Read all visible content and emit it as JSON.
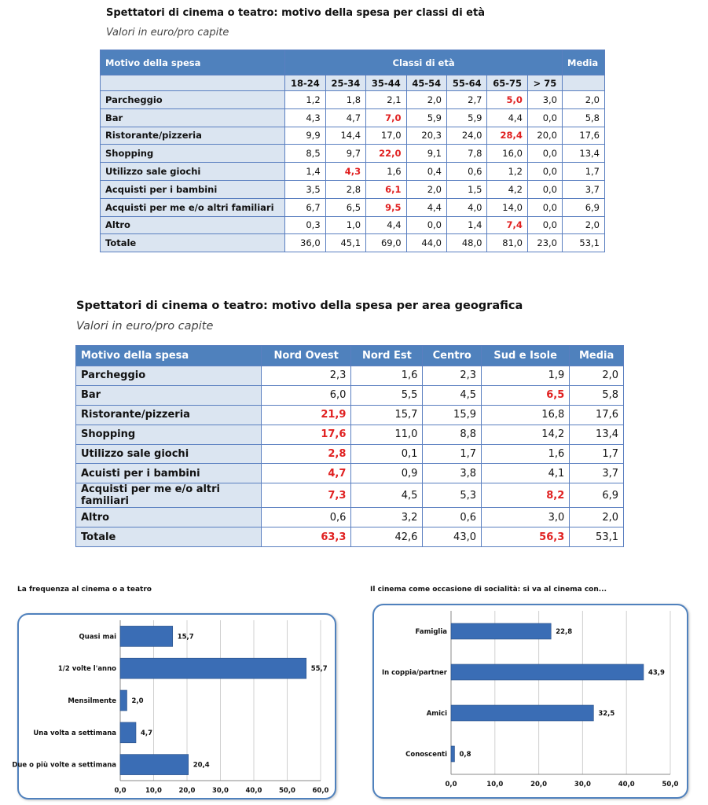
{
  "table1": {
    "title": "Spettatori di cinema o teatro: motivo della spesa per classi di età",
    "subtitle": "Valori in euro/pro capite",
    "header_label": "Motivo della spesa",
    "group_label": "Classi di età",
    "media_label": "Media",
    "age_classes": [
      "18-24",
      "25-34",
      "35-44",
      "45-54",
      "55-64",
      "65-75",
      "> 75"
    ],
    "rows": [
      {
        "label": "Parcheggio",
        "values": [
          "1,2",
          "1,8",
          "2,1",
          "2,0",
          "2,7",
          "5,0",
          "3,0",
          "2,0"
        ],
        "red": [
          5
        ]
      },
      {
        "label": "Bar",
        "values": [
          "4,3",
          "4,7",
          "7,0",
          "5,9",
          "5,9",
          "4,4",
          "0,0",
          "5,8"
        ],
        "red": [
          2
        ]
      },
      {
        "label": "Ristorante/pizzeria",
        "values": [
          "9,9",
          "14,4",
          "17,0",
          "20,3",
          "24,0",
          "28,4",
          "20,0",
          "17,6"
        ],
        "red": [
          5
        ]
      },
      {
        "label": "Shopping",
        "values": [
          "8,5",
          "9,7",
          "22,0",
          "9,1",
          "7,8",
          "16,0",
          "0,0",
          "13,4"
        ],
        "red": [
          2
        ]
      },
      {
        "label": "Utilizzo sale giochi",
        "values": [
          "1,4",
          "4,3",
          "1,6",
          "0,4",
          "0,6",
          "1,2",
          "0,0",
          "1,7"
        ],
        "red": [
          1
        ]
      },
      {
        "label": "Acquisti per i bambini",
        "values": [
          "3,5",
          "2,8",
          "6,1",
          "2,0",
          "1,5",
          "4,2",
          "0,0",
          "3,7"
        ],
        "red": [
          2
        ]
      },
      {
        "label": "Acquisti per me e/o altri familiari",
        "values": [
          "6,7",
          "6,5",
          "9,5",
          "4,4",
          "4,0",
          "14,0",
          "0,0",
          "6,9"
        ],
        "red": [
          2
        ]
      },
      {
        "label": "Altro",
        "values": [
          "0,3",
          "1,0",
          "4,4",
          "0,0",
          "1,4",
          "7,4",
          "0,0",
          "2,0"
        ],
        "red": [
          5
        ]
      },
      {
        "label": "Totale",
        "values": [
          "36,0",
          "45,1",
          "69,0",
          "44,0",
          "48,0",
          "81,0",
          "23,0",
          "53,1"
        ],
        "red": []
      }
    ]
  },
  "table2": {
    "title": "Spettatori di cinema o teatro: motivo della spesa per area geografica",
    "subtitle": "Valori in euro/pro capite",
    "columns": [
      "Motivo della spesa",
      "Nord Ovest",
      "Nord Est",
      "Centro",
      "Sud e Isole",
      "Media"
    ],
    "rows": [
      {
        "label": "Parcheggio",
        "values": [
          "2,3",
          "1,6",
          "2,3",
          "1,9",
          "2,0"
        ],
        "red": []
      },
      {
        "label": "Bar",
        "values": [
          "6,0",
          "5,5",
          "4,5",
          "6,5",
          "5,8"
        ],
        "red": [
          3
        ]
      },
      {
        "label": "Ristorante/pizzeria",
        "values": [
          "21,9",
          "15,7",
          "15,9",
          "16,8",
          "17,6"
        ],
        "red": [
          0
        ]
      },
      {
        "label": "Shopping",
        "values": [
          "17,6",
          "11,0",
          "8,8",
          "14,2",
          "13,4"
        ],
        "red": [
          0
        ]
      },
      {
        "label": "Utilizzo sale giochi",
        "values": [
          "2,8",
          "0,1",
          "1,7",
          "1,6",
          "1,7"
        ],
        "red": [
          0
        ]
      },
      {
        "label": "Acuisti per i bambini",
        "values": [
          "4,7",
          "0,9",
          "3,8",
          "4,1",
          "3,7"
        ],
        "red": [
          0
        ]
      },
      {
        "label": "Acquisti per me e/o altri familiari",
        "values": [
          "7,3",
          "4,5",
          "5,3",
          "8,2",
          "6,9"
        ],
        "red": [
          0,
          3
        ]
      },
      {
        "label": "Altro",
        "values": [
          "0,6",
          "3,2",
          "0,6",
          "3,0",
          "2,0"
        ],
        "red": []
      },
      {
        "label": "Totale",
        "values": [
          "63,3",
          "42,6",
          "43,0",
          "56,3",
          "53,1"
        ],
        "red": [
          0,
          3
        ]
      }
    ]
  },
  "colors": {
    "bar": "#3a6db5",
    "accent": "#4f81bd",
    "red": "#e02020"
  },
  "chart_data": [
    {
      "type": "bar",
      "orientation": "horizontal",
      "title": "La frequenza al cinema o a teatro",
      "categories": [
        "Quasi mai",
        "1/2 volte l'anno",
        "Mensilmente",
        "Una volta a settimana",
        "Due o più volte a settimana"
      ],
      "values": [
        15.7,
        55.7,
        2.0,
        4.7,
        20.4
      ],
      "value_labels": [
        "15,7",
        "55,7",
        "2,0",
        "4,7",
        "20,4"
      ],
      "xlim": [
        0,
        60
      ],
      "ticks": [
        "0,0",
        "10,0",
        "20,0",
        "30,0",
        "40,0",
        "50,0",
        "60,0"
      ],
      "grid": true
    },
    {
      "type": "bar",
      "orientation": "horizontal",
      "title": "Il cinema come occasione di socialità: si va al cinema con...",
      "categories": [
        "Famiglia",
        "In coppia/partner",
        "Amici",
        "Conoscenti"
      ],
      "values": [
        22.8,
        43.9,
        32.5,
        0.8
      ],
      "value_labels": [
        "22,8",
        "43,9",
        "32,5",
        "0,8"
      ],
      "xlim": [
        0,
        50
      ],
      "ticks": [
        "0,0",
        "10,0",
        "20,0",
        "30,0",
        "40,0",
        "50,0"
      ],
      "grid": true
    }
  ]
}
